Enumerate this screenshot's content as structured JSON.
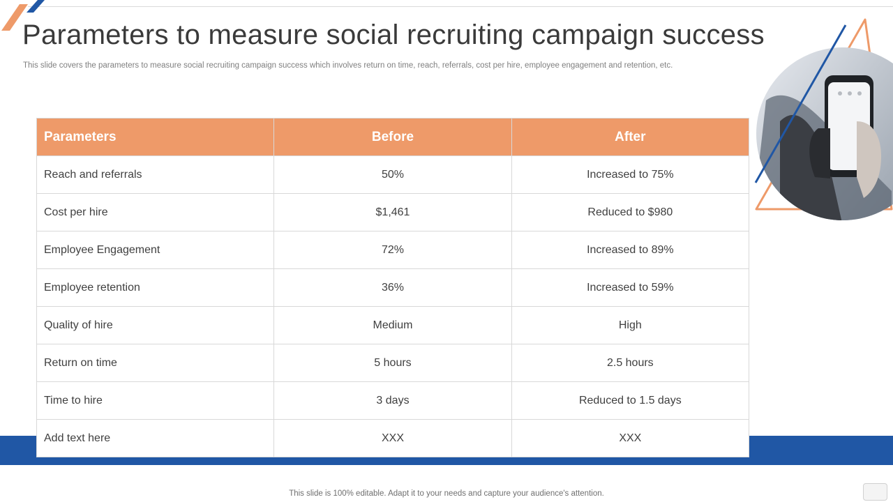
{
  "slide": {
    "title": "Parameters to measure social recruiting campaign success",
    "subtitle": "This slide covers the parameters to measure social recruiting campaign success which involves return on time, reach, referrals, cost per hire, employee engagement and retention, etc.",
    "footer": "This slide is 100% editable. Adapt it to your needs and capture your audience's attention."
  },
  "table": {
    "headers": [
      "Parameters",
      "Before",
      "After"
    ],
    "rows": [
      [
        "Reach and referrals",
        "50%",
        "Increased to 75%"
      ],
      [
        "Cost per hire",
        "$1,461",
        "Reduced to $980"
      ],
      [
        "Employee Engagement",
        "72%",
        "Increased to 89%"
      ],
      [
        "Employee retention",
        "36%",
        "Increased to 59%"
      ],
      [
        "Quality  of hire",
        "Medium",
        "High"
      ],
      [
        "Return  on time",
        "5 hours",
        "2.5 hours"
      ],
      [
        "Time to hire",
        "3 days",
        "Reduced to 1.5 days"
      ],
      [
        "Add text here",
        "XXX",
        "XXX"
      ]
    ]
  },
  "colors": {
    "accent_orange": "#ee9a69",
    "brand_blue": "#2057a5",
    "text_dark": "#3f3f3f"
  }
}
